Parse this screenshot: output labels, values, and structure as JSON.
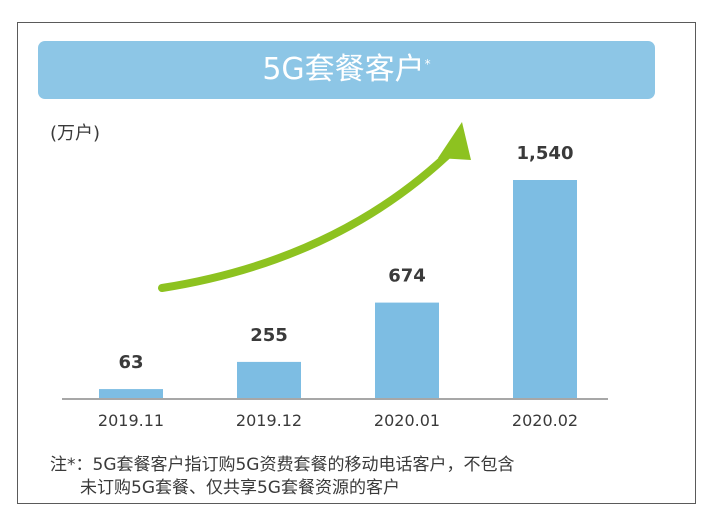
{
  "title": "5G套餐客户",
  "title_mark": "*",
  "unit": "(万户)",
  "note": {
    "line1": "注*：5G套餐客户指订购5G资费套餐的移动电话客户，不包含",
    "line2": "未订购5G套餐、仅共享5G套餐资源的客户"
  },
  "colors": {
    "bar": "#7dbde3",
    "banner": "#8dc6e6",
    "arrow": "#8dc220",
    "axis": "#8a8a8a"
  },
  "chart_data": {
    "type": "bar",
    "categories": [
      "2019.11",
      "2019.12",
      "2020.01",
      "2020.02"
    ],
    "values": [
      63,
      255,
      674,
      1540
    ],
    "value_labels": [
      "63",
      "255",
      "674",
      "1,540"
    ],
    "ylabel": "(万户)",
    "ylim": [
      0,
      1540
    ],
    "grid": false,
    "legend": "none",
    "annotation": "upward-trend-arrow"
  }
}
